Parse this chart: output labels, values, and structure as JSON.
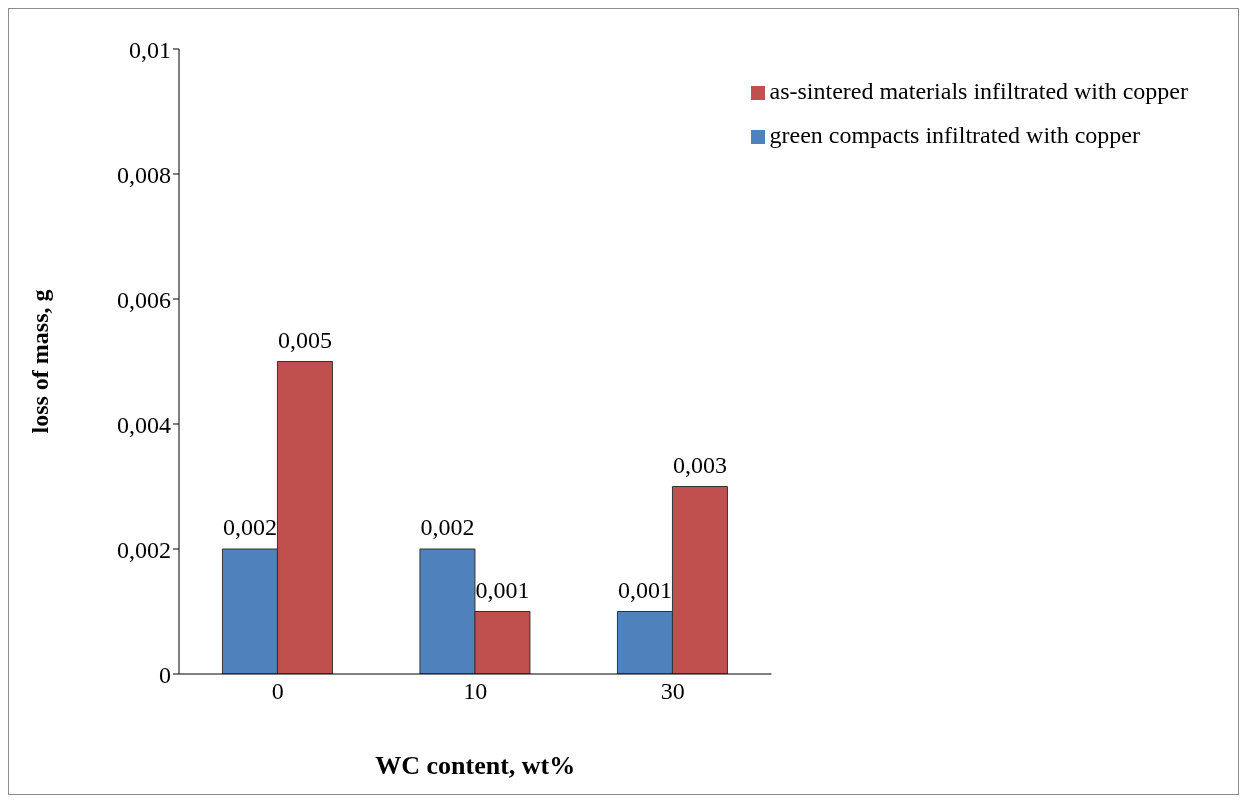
{
  "chart_data": {
    "type": "bar",
    "xlabel": "WC  content, wt%",
    "ylabel": "loss of mass, g",
    "categories": [
      "0",
      "10",
      "30"
    ],
    "series": [
      {
        "name": "green compacts infiltrated with copper",
        "color": "#4f81bd",
        "values": [
          0.002,
          0.002,
          0.001
        ],
        "value_labels": [
          "0,002",
          "0,002",
          "0,001"
        ]
      },
      {
        "name": "as-sintered materials infiltrated with copper",
        "color": "#c0504d",
        "values": [
          0.005,
          0.001,
          0.003
        ],
        "value_labels": [
          "0,005",
          "0,001",
          "0,003"
        ]
      }
    ],
    "ylim": [
      0,
      0.01
    ],
    "yticks": [
      0,
      {
        "value": 0.002,
        "label": "0,002"
      },
      {
        "value": 0.004,
        "label": "0,004"
      },
      {
        "value": 0.006,
        "label": "0,006"
      },
      {
        "value": 0.008,
        "label": "0,008"
      },
      {
        "value": 0.01,
        "label": "0,01"
      }
    ],
    "grid": false,
    "legend": "top right"
  }
}
